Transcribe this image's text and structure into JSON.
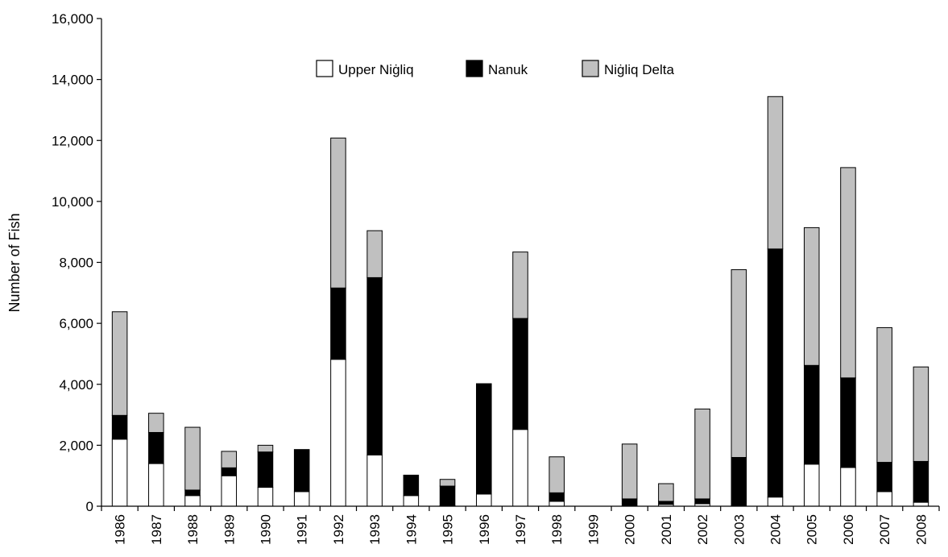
{
  "chart_data": {
    "type": "bar",
    "stacked": true,
    "title": "",
    "xlabel": "",
    "ylabel": "Number of Fish",
    "ylim": [
      0,
      16000
    ],
    "yticks": [
      "0",
      "2,000",
      "4,000",
      "6,000",
      "8,000",
      "10,000",
      "12,000",
      "14,000",
      "16,000"
    ],
    "ytick_values": [
      0,
      2000,
      4000,
      6000,
      8000,
      10000,
      12000,
      14000,
      16000
    ],
    "grid": false,
    "legend_position": "top",
    "categories": [
      "1986",
      "1987",
      "1988",
      "1989",
      "1990",
      "1991",
      "1992",
      "1993",
      "1994",
      "1995",
      "1996",
      "1997",
      "1998",
      "1999",
      "2000",
      "2001",
      "2002",
      "2003",
      "2004",
      "2005",
      "2006",
      "2007",
      "2008"
    ],
    "series": [
      {
        "name": "Upper Niġliq",
        "color": "#ffffff",
        "values": [
          2200,
          1400,
          350,
          1000,
          620,
          480,
          4820,
          1680,
          350,
          20,
          400,
          2520,
          160,
          0,
          0,
          60,
          80,
          0,
          300,
          1380,
          1270,
          480,
          130
        ]
      },
      {
        "name": "Nanuk",
        "color": "#000000",
        "values": [
          780,
          1020,
          180,
          260,
          1160,
          1380,
          2340,
          5820,
          670,
          640,
          3620,
          3640,
          280,
          0,
          240,
          100,
          160,
          1600,
          8140,
          3240,
          2940,
          960,
          1340
        ]
      },
      {
        "name": "Niġliq Delta",
        "color": "#c0c0c0",
        "values": [
          3400,
          630,
          2060,
          540,
          220,
          0,
          4920,
          1540,
          0,
          220,
          0,
          2180,
          1180,
          0,
          1800,
          580,
          2950,
          6160,
          5000,
          4520,
          6900,
          4420,
          3100
        ]
      }
    ]
  }
}
